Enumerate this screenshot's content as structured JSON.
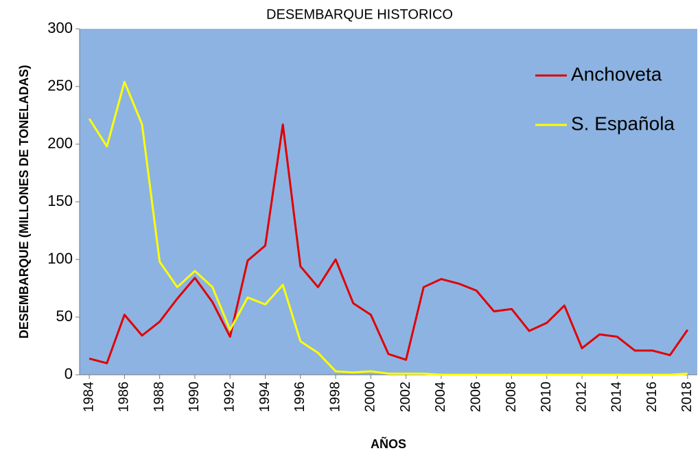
{
  "chart_data": {
    "type": "line",
    "title": "DESEMBARQUE HISTORICO",
    "x_label": "AÑOS",
    "y_label": "DESEMBARQUE (MILLONES DE TONELADAS)",
    "x": [
      1984,
      1985,
      1986,
      1987,
      1988,
      1989,
      1990,
      1991,
      1992,
      1993,
      1994,
      1995,
      1996,
      1997,
      1998,
      1999,
      2000,
      2001,
      2002,
      2003,
      2004,
      2005,
      2006,
      2007,
      2008,
      2009,
      2010,
      2011,
      2012,
      2013,
      2014,
      2015,
      2016,
      2017,
      2018
    ],
    "series": [
      {
        "name": "Anchoveta",
        "color": "#e00000",
        "values": [
          14,
          10,
          52,
          34,
          46,
          66,
          84,
          63,
          33,
          99,
          112,
          217,
          94,
          76,
          100,
          62,
          52,
          18,
          13,
          76,
          83,
          79,
          73,
          55,
          57,
          38,
          45,
          60,
          23,
          35,
          33,
          21,
          21,
          17,
          39
        ]
      },
      {
        "name": "S. Española",
        "color": "#ffff00",
        "values": [
          222,
          198,
          254,
          217,
          98,
          76,
          90,
          76,
          39,
          67,
          61,
          78,
          29,
          19,
          3,
          2,
          3,
          1,
          1,
          1,
          0,
          0,
          0,
          0,
          0,
          0,
          0,
          0,
          0,
          0,
          0,
          0,
          0,
          0,
          1
        ]
      }
    ],
    "xlim": [
      1983.45,
      2018.55
    ],
    "xticks": [
      1984,
      1986,
      1988,
      1990,
      1992,
      1994,
      1996,
      1998,
      2000,
      2002,
      2004,
      2006,
      2008,
      2010,
      2012,
      2014,
      2016,
      2018
    ],
    "ylim": [
      0,
      300
    ],
    "yticks": [
      0,
      50,
      100,
      150,
      200,
      250,
      300
    ],
    "plot_background": "#8db3e2",
    "legend": "upper right"
  }
}
